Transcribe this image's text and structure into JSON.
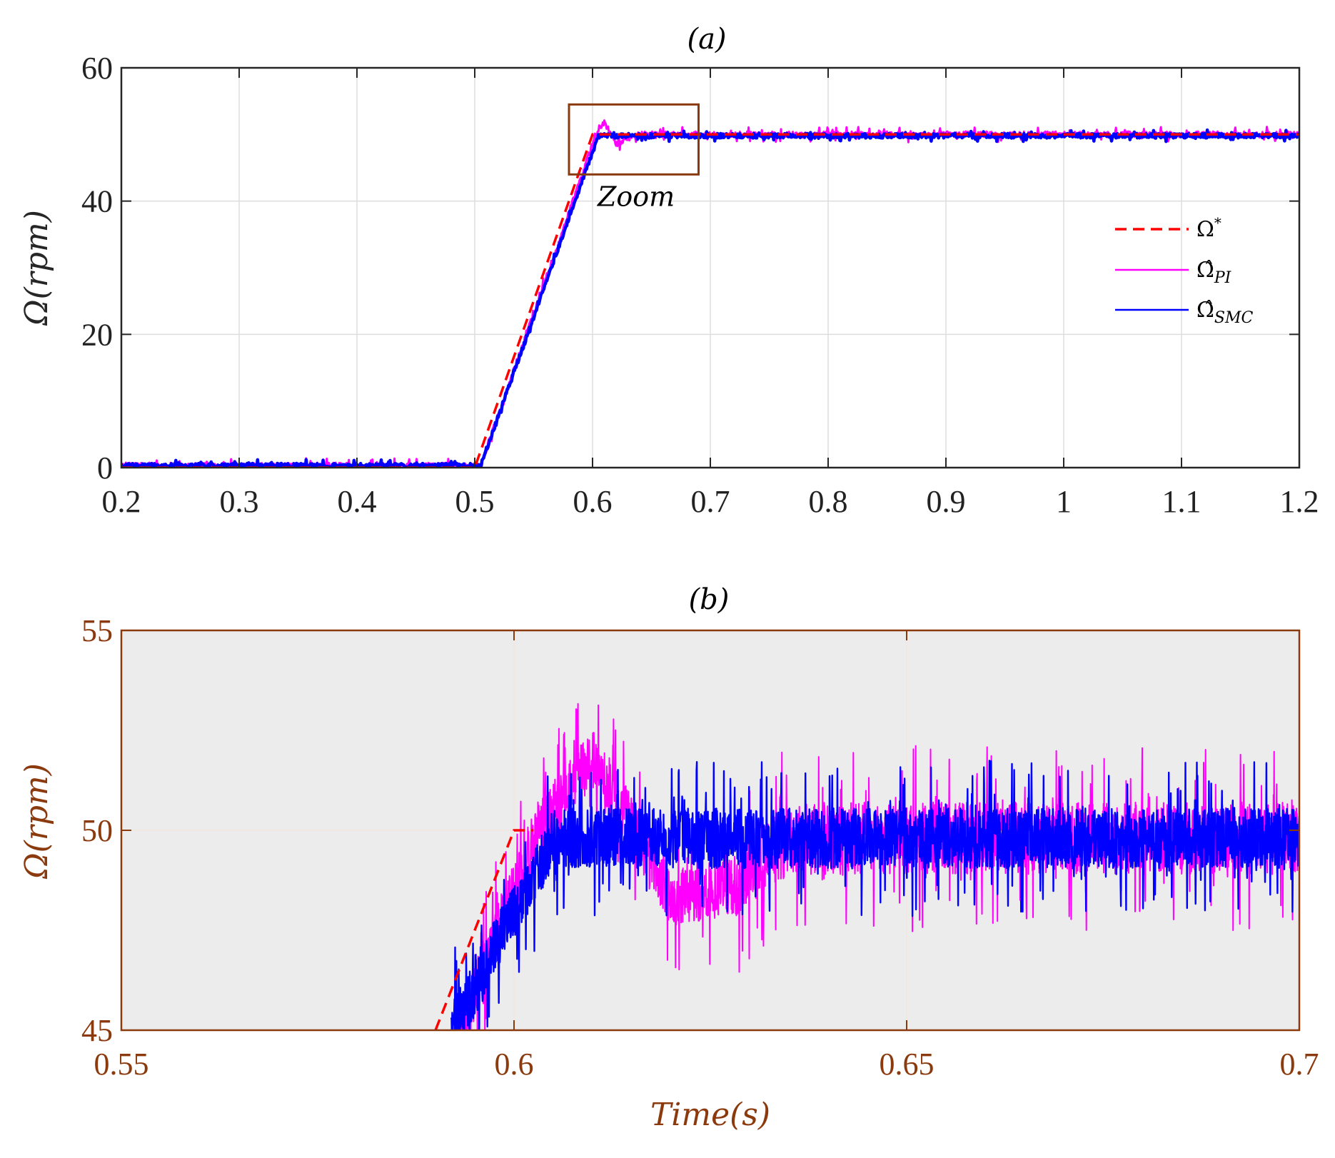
{
  "colors": {
    "reference": "#ff0000",
    "pi": "#ff00ff",
    "smc": "#0000ff",
    "brown": "#8b3a0e",
    "gridA": "#dddddd",
    "bgB": "#ececec"
  },
  "chart_data": [
    {
      "panel": "a",
      "type": "line",
      "title": "(a)",
      "xlabel": "",
      "ylabel": "Ω(rpm)",
      "xlim": [
        0.2,
        1.2
      ],
      "ylim": [
        0,
        60
      ],
      "xticks": [
        0.2,
        0.3,
        0.4,
        0.5,
        0.6,
        0.7,
        0.8,
        0.9,
        1,
        1.1,
        1.2
      ],
      "xtick_labels": [
        "0.2",
        "0.3",
        "0.4",
        "0.5",
        "0.6",
        "0.7",
        "0.8",
        "0.9",
        "1",
        "1.1",
        "1.2"
      ],
      "yticks": [
        0,
        20,
        40,
        60
      ],
      "ytick_labels": [
        "0",
        "20",
        "40",
        "60"
      ],
      "grid": true,
      "legend_position": "right",
      "legend": [
        {
          "symbol": "Ω",
          "sup": "*",
          "sub": "",
          "style": "dashed",
          "color_key": "reference"
        },
        {
          "symbol": "Ω̂",
          "sup": "",
          "sub": "PI",
          "style": "solid",
          "color_key": "pi"
        },
        {
          "symbol": "Ω̂",
          "sup": "",
          "sub": "SMC",
          "style": "solid",
          "color_key": "smc"
        }
      ],
      "zoom_box": {
        "label": "Zoom",
        "xrange": [
          0.58,
          0.69
        ],
        "yrange": [
          44,
          54.5
        ]
      },
      "series": [
        {
          "name": "Ω*",
          "x": [
            0.2,
            0.5,
            0.6,
            1.2
          ],
          "y": [
            0,
            0,
            50,
            50
          ]
        },
        {
          "name": "Ω̂_PI",
          "x": [
            0.2,
            0.505,
            0.603,
            0.61,
            0.62,
            0.63,
            0.64,
            1.2
          ],
          "y": [
            0.3,
            0.3,
            50,
            51.8,
            48.5,
            49.5,
            50,
            50
          ]
        },
        {
          "name": "Ω̂_SMC",
          "x": [
            0.2,
            0.505,
            0.605,
            1.2
          ],
          "y": [
            0.3,
            0.3,
            49.8,
            49.8
          ]
        }
      ]
    },
    {
      "panel": "b",
      "type": "line",
      "title": "(b)",
      "xlabel": "Time(s)",
      "ylabel": "Ω(rpm)",
      "xlim": [
        0.55,
        0.7
      ],
      "ylim": [
        45,
        55
      ],
      "xticks": [
        0.55,
        0.6,
        0.65,
        0.7
      ],
      "xtick_labels": [
        "0.55",
        "0.6",
        "0.65",
        "0.7"
      ],
      "yticks": [
        45,
        50,
        55
      ],
      "ytick_labels": [
        "45",
        "50",
        "55"
      ],
      "grid": true,
      "series": [
        {
          "name": "Ω*",
          "x": [
            0.59,
            0.6,
            0.6025
          ],
          "y": [
            45,
            50,
            50
          ]
        },
        {
          "name": "Ω̂_PI",
          "x": [
            0.593,
            0.603,
            0.61,
            0.615,
            0.62,
            0.628,
            0.635,
            0.7
          ],
          "y": [
            45,
            50,
            51.8,
            50.2,
            48.3,
            48.6,
            49.8,
            49.8
          ]
        },
        {
          "name": "Ω̂_SMC",
          "x": [
            0.592,
            0.605,
            0.7
          ],
          "y": [
            45,
            49.8,
            49.8
          ]
        }
      ]
    }
  ]
}
